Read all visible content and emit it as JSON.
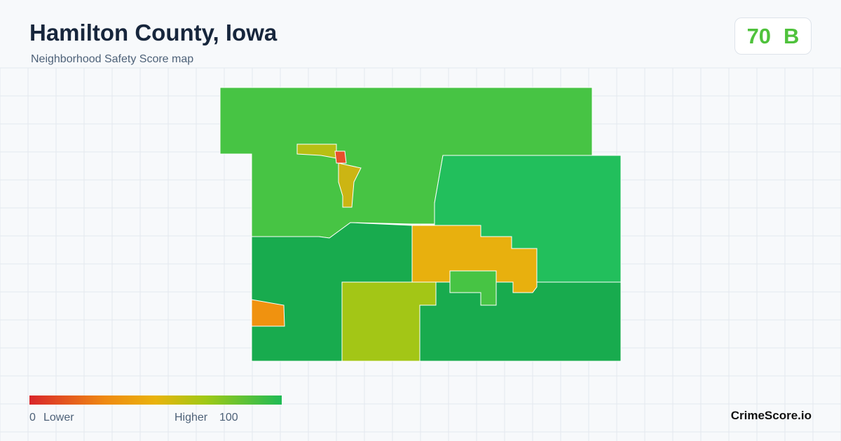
{
  "header": {
    "title": "Hamilton County, Iowa",
    "subtitle": "Neighborhood Safety Score map"
  },
  "score": {
    "value": "70",
    "grade": "B"
  },
  "legend": {
    "min": "0",
    "min_label": "Lower",
    "max_label": "Higher",
    "max": "100"
  },
  "brand": "CrimeScore.io"
}
